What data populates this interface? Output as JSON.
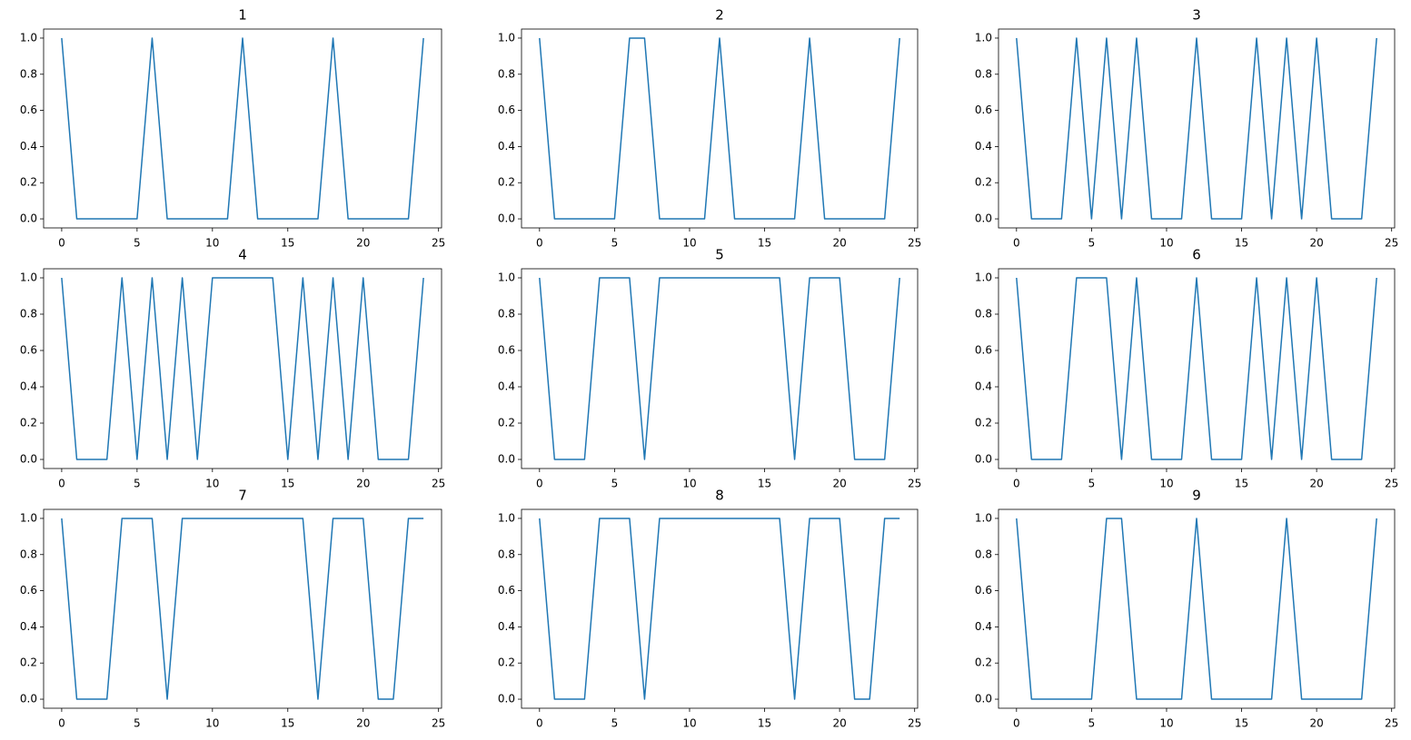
{
  "chart_data": [
    {
      "type": "line",
      "title": "1",
      "color": "#1f77b4",
      "x": [
        0,
        1,
        2,
        3,
        4,
        5,
        6,
        7,
        8,
        9,
        10,
        11,
        12,
        13,
        14,
        15,
        16,
        17,
        18,
        19,
        20,
        21,
        22,
        23,
        24
      ],
      "values": [
        1,
        0,
        0,
        0,
        0,
        0,
        1,
        0,
        0,
        0,
        0,
        0,
        1,
        0,
        0,
        0,
        0,
        0,
        1,
        0,
        0,
        0,
        0,
        0,
        1
      ],
      "xlim": [
        -1.2,
        25.2
      ],
      "ylim": [
        -0.05,
        1.05
      ],
      "xticks": [
        0,
        5,
        10,
        15,
        20,
        25
      ],
      "yticks": [
        {
          "value": 0,
          "label": "0.0"
        },
        {
          "value": 0.2,
          "label": "0.2"
        },
        {
          "value": 0.4,
          "label": "0.4"
        },
        {
          "value": 0.6,
          "label": "0.6"
        },
        {
          "value": 0.8,
          "label": "0.8"
        },
        {
          "value": 1,
          "label": "1.0"
        }
      ]
    },
    {
      "type": "line",
      "title": "2",
      "color": "#1f77b4",
      "x": [
        0,
        1,
        2,
        3,
        4,
        5,
        6,
        7,
        8,
        9,
        10,
        11,
        12,
        13,
        14,
        15,
        16,
        17,
        18,
        19,
        20,
        21,
        22,
        23,
        24
      ],
      "values": [
        1,
        0,
        0,
        0,
        0,
        0,
        1,
        1,
        0,
        0,
        0,
        0,
        1,
        0,
        0,
        0,
        0,
        0,
        1,
        0,
        0,
        0,
        0,
        0,
        1
      ],
      "xlim": [
        -1.2,
        25.2
      ],
      "ylim": [
        -0.05,
        1.05
      ],
      "xticks": [
        0,
        5,
        10,
        15,
        20,
        25
      ],
      "yticks": [
        {
          "value": 0,
          "label": "0.0"
        },
        {
          "value": 0.2,
          "label": "0.2"
        },
        {
          "value": 0.4,
          "label": "0.4"
        },
        {
          "value": 0.6,
          "label": "0.6"
        },
        {
          "value": 0.8,
          "label": "0.8"
        },
        {
          "value": 1,
          "label": "1.0"
        }
      ]
    },
    {
      "type": "line",
      "title": "3",
      "color": "#1f77b4",
      "x": [
        0,
        1,
        2,
        3,
        4,
        5,
        6,
        7,
        8,
        9,
        10,
        11,
        12,
        13,
        14,
        15,
        16,
        17,
        18,
        19,
        20,
        21,
        22,
        23,
        24
      ],
      "values": [
        1,
        0,
        0,
        0,
        1,
        0,
        1,
        0,
        1,
        0,
        0,
        0,
        1,
        0,
        0,
        0,
        1,
        0,
        1,
        0,
        1,
        0,
        0,
        0,
        1
      ],
      "xlim": [
        -1.2,
        25.2
      ],
      "ylim": [
        -0.05,
        1.05
      ],
      "xticks": [
        0,
        5,
        10,
        15,
        20,
        25
      ],
      "yticks": [
        {
          "value": 0,
          "label": "0.0"
        },
        {
          "value": 0.2,
          "label": "0.2"
        },
        {
          "value": 0.4,
          "label": "0.4"
        },
        {
          "value": 0.6,
          "label": "0.6"
        },
        {
          "value": 0.8,
          "label": "0.8"
        },
        {
          "value": 1,
          "label": "1.0"
        }
      ]
    },
    {
      "type": "line",
      "title": "4",
      "color": "#1f77b4",
      "x": [
        0,
        1,
        2,
        3,
        4,
        5,
        6,
        7,
        8,
        9,
        10,
        11,
        12,
        13,
        14,
        15,
        16,
        17,
        18,
        19,
        20,
        21,
        22,
        23,
        24
      ],
      "values": [
        1,
        0,
        0,
        0,
        1,
        0,
        1,
        0,
        1,
        0,
        1,
        1,
        1,
        1,
        1,
        0,
        1,
        0,
        1,
        0,
        1,
        0,
        0,
        0,
        1
      ],
      "xlim": [
        -1.2,
        25.2
      ],
      "ylim": [
        -0.05,
        1.05
      ],
      "xticks": [
        0,
        5,
        10,
        15,
        20,
        25
      ],
      "yticks": [
        {
          "value": 0,
          "label": "0.0"
        },
        {
          "value": 0.2,
          "label": "0.2"
        },
        {
          "value": 0.4,
          "label": "0.4"
        },
        {
          "value": 0.6,
          "label": "0.6"
        },
        {
          "value": 0.8,
          "label": "0.8"
        },
        {
          "value": 1,
          "label": "1.0"
        }
      ]
    },
    {
      "type": "line",
      "title": "5",
      "color": "#1f77b4",
      "x": [
        0,
        1,
        2,
        3,
        4,
        5,
        6,
        7,
        8,
        9,
        10,
        11,
        12,
        13,
        14,
        15,
        16,
        17,
        18,
        19,
        20,
        21,
        22,
        23,
        24
      ],
      "values": [
        1,
        0,
        0,
        0,
        1,
        1,
        1,
        0,
        1,
        1,
        1,
        1,
        1,
        1,
        1,
        1,
        1,
        0,
        1,
        1,
        1,
        0,
        0,
        0,
        1
      ],
      "xlim": [
        -1.2,
        25.2
      ],
      "ylim": [
        -0.05,
        1.05
      ],
      "xticks": [
        0,
        5,
        10,
        15,
        20,
        25
      ],
      "yticks": [
        {
          "value": 0,
          "label": "0.0"
        },
        {
          "value": 0.2,
          "label": "0.2"
        },
        {
          "value": 0.4,
          "label": "0.4"
        },
        {
          "value": 0.6,
          "label": "0.6"
        },
        {
          "value": 0.8,
          "label": "0.8"
        },
        {
          "value": 1,
          "label": "1.0"
        }
      ]
    },
    {
      "type": "line",
      "title": "6",
      "color": "#1f77b4",
      "x": [
        0,
        1,
        2,
        3,
        4,
        5,
        6,
        7,
        8,
        9,
        10,
        11,
        12,
        13,
        14,
        15,
        16,
        17,
        18,
        19,
        20,
        21,
        22,
        23,
        24
      ],
      "values": [
        1,
        0,
        0,
        0,
        1,
        1,
        1,
        0,
        1,
        0,
        0,
        0,
        1,
        0,
        0,
        0,
        1,
        0,
        1,
        0,
        1,
        0,
        0,
        0,
        1
      ],
      "xlim": [
        -1.2,
        25.2
      ],
      "ylim": [
        -0.05,
        1.05
      ],
      "xticks": [
        0,
        5,
        10,
        15,
        20,
        25
      ],
      "yticks": [
        {
          "value": 0,
          "label": "0.0"
        },
        {
          "value": 0.2,
          "label": "0.2"
        },
        {
          "value": 0.4,
          "label": "0.4"
        },
        {
          "value": 0.6,
          "label": "0.6"
        },
        {
          "value": 0.8,
          "label": "0.8"
        },
        {
          "value": 1,
          "label": "1.0"
        }
      ]
    },
    {
      "type": "line",
      "title": "7",
      "color": "#1f77b4",
      "x": [
        0,
        1,
        2,
        3,
        4,
        5,
        6,
        7,
        8,
        9,
        10,
        11,
        12,
        13,
        14,
        15,
        16,
        17,
        18,
        19,
        20,
        21,
        22,
        23,
        24
      ],
      "values": [
        1,
        0,
        0,
        0,
        1,
        1,
        1,
        0,
        1,
        1,
        1,
        1,
        1,
        1,
        1,
        1,
        1,
        0,
        1,
        1,
        1,
        0,
        0,
        1,
        1
      ],
      "xlim": [
        -1.2,
        25.2
      ],
      "ylim": [
        -0.05,
        1.05
      ],
      "xticks": [
        0,
        5,
        10,
        15,
        20,
        25
      ],
      "yticks": [
        {
          "value": 0,
          "label": "0.0"
        },
        {
          "value": 0.2,
          "label": "0.2"
        },
        {
          "value": 0.4,
          "label": "0.4"
        },
        {
          "value": 0.6,
          "label": "0.6"
        },
        {
          "value": 0.8,
          "label": "0.8"
        },
        {
          "value": 1,
          "label": "1.0"
        }
      ]
    },
    {
      "type": "line",
      "title": "8",
      "color": "#1f77b4",
      "x": [
        0,
        1,
        2,
        3,
        4,
        5,
        6,
        7,
        8,
        9,
        10,
        11,
        12,
        13,
        14,
        15,
        16,
        17,
        18,
        19,
        20,
        21,
        22,
        23,
        24
      ],
      "values": [
        1,
        0,
        0,
        0,
        1,
        1,
        1,
        0,
        1,
        1,
        1,
        1,
        1,
        1,
        1,
        1,
        1,
        0,
        1,
        1,
        1,
        0,
        0,
        1,
        1
      ],
      "xlim": [
        -1.2,
        25.2
      ],
      "ylim": [
        -0.05,
        1.05
      ],
      "xticks": [
        0,
        5,
        10,
        15,
        20,
        25
      ],
      "yticks": [
        {
          "value": 0,
          "label": "0.0"
        },
        {
          "value": 0.2,
          "label": "0.2"
        },
        {
          "value": 0.4,
          "label": "0.4"
        },
        {
          "value": 0.6,
          "label": "0.6"
        },
        {
          "value": 0.8,
          "label": "0.8"
        },
        {
          "value": 1,
          "label": "1.0"
        }
      ]
    },
    {
      "type": "line",
      "title": "9",
      "color": "#1f77b4",
      "x": [
        0,
        1,
        2,
        3,
        4,
        5,
        6,
        7,
        8,
        9,
        10,
        11,
        12,
        13,
        14,
        15,
        16,
        17,
        18,
        19,
        20,
        21,
        22,
        23,
        24
      ],
      "values": [
        1,
        0,
        0,
        0,
        0,
        0,
        1,
        1,
        0,
        0,
        0,
        0,
        1,
        0,
        0,
        0,
        0,
        0,
        1,
        0,
        0,
        0,
        0,
        0,
        1
      ],
      "xlim": [
        -1.2,
        25.2
      ],
      "ylim": [
        -0.05,
        1.05
      ],
      "xticks": [
        0,
        5,
        10,
        15,
        20,
        25
      ],
      "yticks": [
        {
          "value": 0,
          "label": "0.0"
        },
        {
          "value": 0.2,
          "label": "0.2"
        },
        {
          "value": 0.4,
          "label": "0.4"
        },
        {
          "value": 0.6,
          "label": "0.6"
        },
        {
          "value": 0.8,
          "label": "0.8"
        },
        {
          "value": 1,
          "label": "1.0"
        }
      ]
    }
  ]
}
